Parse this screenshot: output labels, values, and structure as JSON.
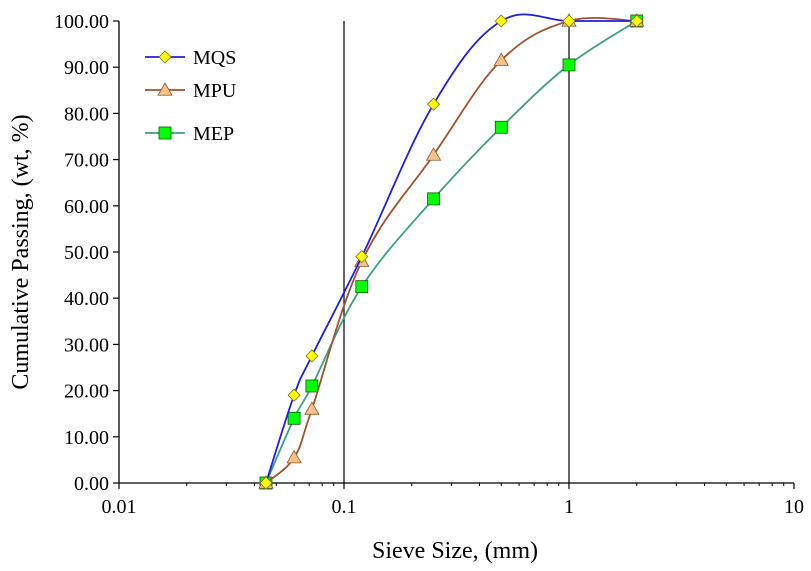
{
  "chart_data": {
    "type": "scatter",
    "title": "",
    "xlabel": "Sieve Size, (mm)",
    "ylabel": "Cumulative Passing, (wt, %)",
    "x_scale": "log",
    "xlim": [
      0.01,
      10
    ],
    "ylim": [
      0,
      100
    ],
    "x_ticks": [
      0.01,
      0.1,
      1,
      10
    ],
    "x_tick_labels": [
      "0.01",
      "0.1",
      "1",
      "10"
    ],
    "y_ticks": [
      0,
      10,
      20,
      30,
      40,
      50,
      60,
      70,
      80,
      90,
      100
    ],
    "y_tick_labels": [
      "0.00",
      "10.00",
      "20.00",
      "30.00",
      "40.00",
      "50.00",
      "60.00",
      "70.00",
      "80.00",
      "90.00",
      "100.00"
    ],
    "vertical_gridlines_at": [
      0.1,
      1
    ],
    "horizontal_grid": false,
    "legend_position": "top-left",
    "series": [
      {
        "name": "MQS",
        "marker": "diamond",
        "marker_color": "#FFFF00",
        "line_color": "#1F1FE0",
        "x": [
          0.045,
          0.06,
          0.072,
          0.12,
          0.25,
          0.5,
          1.0,
          2.0
        ],
        "y": [
          0.0,
          19.0,
          27.5,
          49.0,
          82.0,
          100.0,
          100.0,
          100.0
        ]
      },
      {
        "name": "MPU",
        "marker": "triangle",
        "marker_color": "#F5C08A",
        "line_color": "#A0522D",
        "x": [
          0.045,
          0.06,
          0.072,
          0.12,
          0.25,
          0.5,
          1.0,
          2.0
        ],
        "y": [
          0.0,
          5.5,
          16.0,
          48.0,
          71.0,
          91.5,
          100.0,
          100.0
        ]
      },
      {
        "name": "MEP",
        "marker": "square",
        "marker_color": "#00FF00",
        "line_color": "#3CA080",
        "x": [
          0.045,
          0.06,
          0.072,
          0.12,
          0.25,
          0.5,
          1.0,
          2.0
        ],
        "y": [
          0.0,
          14.0,
          21.0,
          42.5,
          61.5,
          77.0,
          90.5,
          100.0
        ]
      }
    ]
  }
}
